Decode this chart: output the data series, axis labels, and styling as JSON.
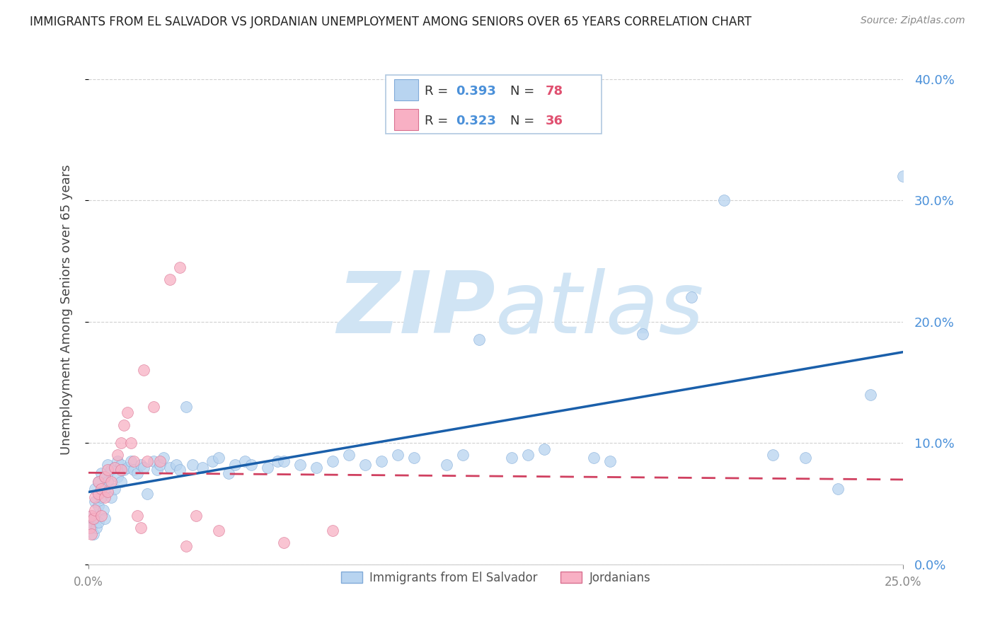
{
  "title": "IMMIGRANTS FROM EL SALVADOR VS JORDANIAN UNEMPLOYMENT AMONG SENIORS OVER 65 YEARS CORRELATION CHART",
  "source": "Source: ZipAtlas.com",
  "ylabel": "Unemployment Among Seniors over 65 years",
  "xlim": [
    0.0,
    0.25
  ],
  "ylim": [
    0.0,
    0.42
  ],
  "ytick_positions": [
    0.0,
    0.1,
    0.2,
    0.3,
    0.4
  ],
  "xtick_positions": [
    0.0,
    0.25
  ],
  "legend_R_color": "#4a90d9",
  "legend_N_color": "#e05070",
  "series_blue": {
    "name": "Immigrants from El Salvador",
    "color": "#b8d4f0",
    "edge_color": "#80aad8",
    "trend_color": "#1a5faa",
    "x": [
      0.0005,
      0.001,
      0.0012,
      0.0015,
      0.002,
      0.002,
      0.002,
      0.0025,
      0.003,
      0.003,
      0.003,
      0.004,
      0.004,
      0.0045,
      0.005,
      0.005,
      0.005,
      0.006,
      0.006,
      0.007,
      0.007,
      0.008,
      0.008,
      0.009,
      0.009,
      0.01,
      0.01,
      0.011,
      0.012,
      0.013,
      0.014,
      0.015,
      0.016,
      0.017,
      0.018,
      0.02,
      0.021,
      0.022,
      0.023,
      0.025,
      0.027,
      0.028,
      0.03,
      0.032,
      0.035,
      0.038,
      0.04,
      0.043,
      0.045,
      0.048,
      0.05,
      0.055,
      0.058,
      0.06,
      0.065,
      0.07,
      0.075,
      0.08,
      0.085,
      0.09,
      0.095,
      0.1,
      0.11,
      0.115,
      0.12,
      0.13,
      0.135,
      0.14,
      0.155,
      0.16,
      0.17,
      0.185,
      0.195,
      0.21,
      0.22,
      0.23,
      0.24,
      0.25
    ],
    "y": [
      0.035,
      0.03,
      0.04,
      0.025,
      0.038,
      0.052,
      0.062,
      0.03,
      0.035,
      0.048,
      0.068,
      0.055,
      0.075,
      0.045,
      0.062,
      0.072,
      0.038,
      0.068,
      0.082,
      0.055,
      0.078,
      0.062,
      0.08,
      0.072,
      0.085,
      0.068,
      0.082,
      0.078,
      0.08,
      0.085,
      0.078,
      0.075,
      0.082,
      0.08,
      0.058,
      0.085,
      0.078,
      0.082,
      0.088,
      0.08,
      0.082,
      0.078,
      0.13,
      0.082,
      0.08,
      0.085,
      0.088,
      0.075,
      0.082,
      0.085,
      0.082,
      0.08,
      0.085,
      0.085,
      0.082,
      0.08,
      0.085,
      0.09,
      0.082,
      0.085,
      0.09,
      0.088,
      0.082,
      0.09,
      0.185,
      0.088,
      0.09,
      0.095,
      0.088,
      0.085,
      0.19,
      0.22,
      0.3,
      0.09,
      0.088,
      0.062,
      0.14,
      0.32
    ]
  },
  "series_pink": {
    "name": "Jordanians",
    "color": "#f8b0c4",
    "edge_color": "#d87090",
    "trend_color": "#d04060",
    "x": [
      0.0005,
      0.001,
      0.001,
      0.0015,
      0.002,
      0.002,
      0.003,
      0.003,
      0.004,
      0.004,
      0.005,
      0.005,
      0.006,
      0.006,
      0.007,
      0.008,
      0.009,
      0.01,
      0.01,
      0.011,
      0.012,
      0.013,
      0.014,
      0.015,
      0.016,
      0.017,
      0.018,
      0.02,
      0.022,
      0.025,
      0.028,
      0.03,
      0.033,
      0.04,
      0.06,
      0.075
    ],
    "y": [
      0.03,
      0.025,
      0.04,
      0.038,
      0.045,
      0.055,
      0.058,
      0.068,
      0.062,
      0.04,
      0.072,
      0.055,
      0.078,
      0.06,
      0.068,
      0.08,
      0.09,
      0.1,
      0.078,
      0.115,
      0.125,
      0.1,
      0.085,
      0.04,
      0.03,
      0.16,
      0.085,
      0.13,
      0.085,
      0.235,
      0.245,
      0.015,
      0.04,
      0.028,
      0.018,
      0.028
    ]
  },
  "background_color": "#ffffff",
  "grid_color": "#cccccc",
  "axis_color": "#4a90d9",
  "watermark_zip": "ZIP",
  "watermark_atlas": "atlas",
  "watermark_color": "#d0e4f4"
}
